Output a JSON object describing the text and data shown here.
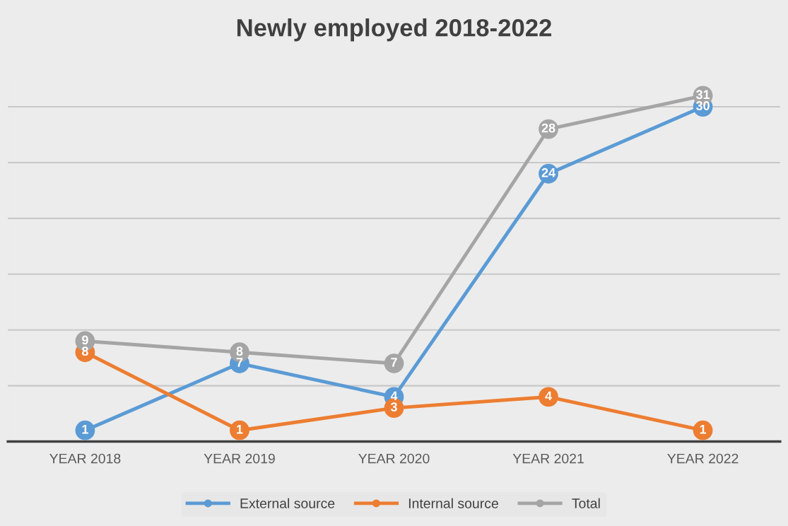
{
  "chart_data": {
    "type": "line",
    "title": "Newly employed 2018-2022",
    "categories": [
      "YEAR 2018",
      "YEAR 2019",
      "YEAR 2020",
      "YEAR 2021",
      "YEAR 2022"
    ],
    "series": [
      {
        "name": "External source",
        "color": "#5b9bd5",
        "values": [
          1,
          7,
          4,
          24,
          30
        ]
      },
      {
        "name": "Internal source",
        "color": "#ed7d31",
        "values": [
          8,
          1,
          3,
          4,
          1
        ]
      },
      {
        "name": "Total",
        "color": "#a5a5a5",
        "values": [
          9,
          8,
          7,
          28,
          31
        ]
      }
    ],
    "tick_labels": "x",
    "grid": "y",
    "legend": "bottom",
    "marker": "circle",
    "line_style": "solid",
    "data_labels": true
  }
}
